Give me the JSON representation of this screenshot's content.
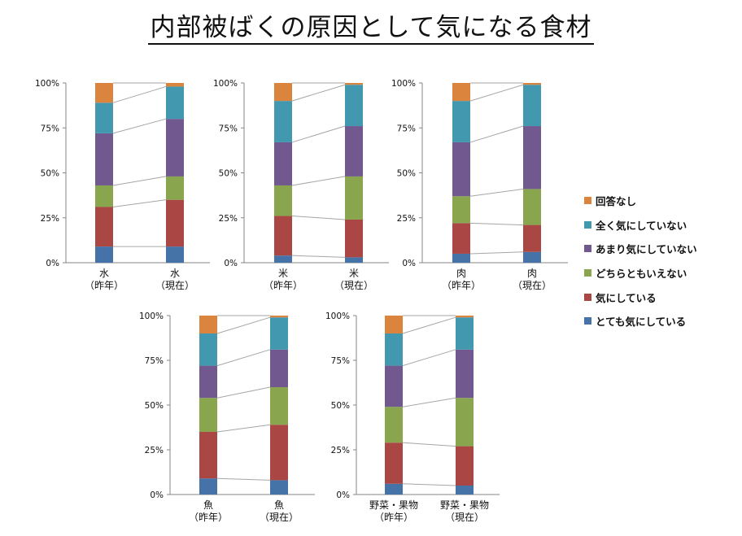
{
  "title": "内部被ばくの原因として気になる食材",
  "colors": {
    "とても気にしている": "#4572A7",
    "気にしている": "#AA4643",
    "どちらともいえない": "#89A54E",
    "あまり気にしていない": "#71588F",
    "全く気にしていない": "#4198AF",
    "回答なし": "#DB843D"
  },
  "legend": [
    "回答なし",
    "全く気にしていない",
    "あまり気にしていない",
    "どちらともいえない",
    "気にしている",
    "とても気にしている"
  ],
  "chart_data": [
    {
      "type": "bar",
      "stacked": true,
      "percent": true,
      "name": "水",
      "y_ticks": [
        "0%",
        "25%",
        "50%",
        "75%",
        "100%"
      ],
      "categories": [
        [
          "水",
          "（昨年）"
        ],
        [
          "水",
          "（現在）"
        ]
      ],
      "series": [
        {
          "name": "とても気にしている",
          "values": [
            9,
            9
          ]
        },
        {
          "name": "気にしている",
          "values": [
            22,
            26
          ]
        },
        {
          "name": "どちらともいえない",
          "values": [
            12,
            13
          ]
        },
        {
          "name": "あまり気にしていない",
          "values": [
            29,
            32
          ]
        },
        {
          "name": "全く気にしていない",
          "values": [
            17,
            18
          ]
        },
        {
          "name": "回答なし",
          "values": [
            11,
            2
          ]
        }
      ]
    },
    {
      "type": "bar",
      "stacked": true,
      "percent": true,
      "name": "米",
      "y_ticks": [
        "0%",
        "25%",
        "50%",
        "75%",
        "100%"
      ],
      "categories": [
        [
          "米",
          "（昨年）"
        ],
        [
          "米",
          "（現在）"
        ]
      ],
      "series": [
        {
          "name": "とても気にしている",
          "values": [
            4,
            3
          ]
        },
        {
          "name": "気にしている",
          "values": [
            22,
            21
          ]
        },
        {
          "name": "どちらともいえない",
          "values": [
            17,
            24
          ]
        },
        {
          "name": "あまり気にしていない",
          "values": [
            24,
            28
          ]
        },
        {
          "name": "全く気にしていない",
          "values": [
            23,
            23
          ]
        },
        {
          "name": "回答なし",
          "values": [
            10,
            1
          ]
        }
      ]
    },
    {
      "type": "bar",
      "stacked": true,
      "percent": true,
      "name": "肉",
      "y_ticks": [
        "0%",
        "25%",
        "50%",
        "75%",
        "100%"
      ],
      "categories": [
        [
          "肉",
          "（昨年）"
        ],
        [
          "肉",
          "（現在）"
        ]
      ],
      "series": [
        {
          "name": "とても気にしている",
          "values": [
            5,
            6
          ]
        },
        {
          "name": "気にしている",
          "values": [
            17,
            15
          ]
        },
        {
          "name": "どちらともいえない",
          "values": [
            15,
            20
          ]
        },
        {
          "name": "あまり気にしていない",
          "values": [
            30,
            35
          ]
        },
        {
          "name": "全く気にしていない",
          "values": [
            23,
            23
          ]
        },
        {
          "name": "回答なし",
          "values": [
            10,
            1
          ]
        }
      ]
    },
    {
      "type": "bar",
      "stacked": true,
      "percent": true,
      "name": "魚",
      "y_ticks": [
        "0%",
        "25%",
        "50%",
        "75%",
        "100%"
      ],
      "categories": [
        [
          "魚",
          "（昨年）"
        ],
        [
          "魚",
          "（現在）"
        ]
      ],
      "series": [
        {
          "name": "とても気にしている",
          "values": [
            9,
            8
          ]
        },
        {
          "name": "気にしている",
          "values": [
            26,
            31
          ]
        },
        {
          "name": "どちらともいえない",
          "values": [
            19,
            21
          ]
        },
        {
          "name": "あまり気にしていない",
          "values": [
            18,
            21
          ]
        },
        {
          "name": "全く気にしていない",
          "values": [
            18,
            18
          ]
        },
        {
          "name": "回答なし",
          "values": [
            10,
            1
          ]
        }
      ]
    },
    {
      "type": "bar",
      "stacked": true,
      "percent": true,
      "name": "野菜・果物",
      "y_ticks": [
        "0%",
        "25%",
        "50%",
        "75%",
        "100%"
      ],
      "categories": [
        [
          "野菜・果物",
          "（昨年）"
        ],
        [
          "野菜・果物",
          "（現在）"
        ]
      ],
      "series": [
        {
          "name": "とても気にしている",
          "values": [
            6,
            5
          ]
        },
        {
          "name": "気にしている",
          "values": [
            23,
            22
          ]
        },
        {
          "name": "どちらともいえない",
          "values": [
            20,
            27
          ]
        },
        {
          "name": "あまり気にしていない",
          "values": [
            23,
            27
          ]
        },
        {
          "name": "全く気にしていない",
          "values": [
            18,
            18
          ]
        },
        {
          "name": "回答なし",
          "values": [
            10,
            1
          ]
        }
      ]
    }
  ]
}
